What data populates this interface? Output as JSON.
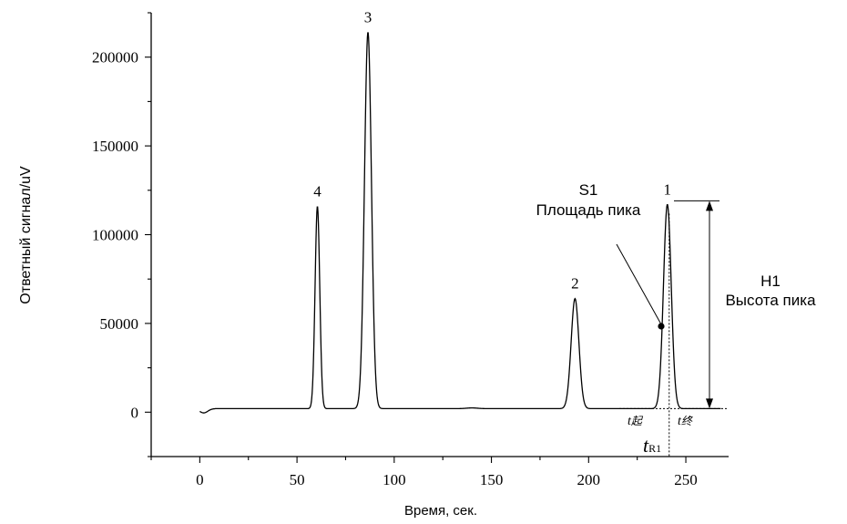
{
  "chart_data": {
    "type": "line",
    "xlabel": "Время, сек.",
    "ylabel": "Ответный сигнал/uV",
    "xlim": [
      -25,
      272
    ],
    "ylim": [
      -25000,
      225000
    ],
    "x_ticks": [
      0,
      50,
      100,
      150,
      200,
      250
    ],
    "y_ticks": [
      0,
      50000,
      100000,
      150000,
      200000
    ],
    "grid": false,
    "baseline": 2000,
    "peaks": [
      {
        "label": "4",
        "x": 60.5,
        "y": 116000
      },
      {
        "label": "3",
        "x": 86.5,
        "y": 214000
      },
      {
        "label": "2",
        "x": 193,
        "y": 64000
      },
      {
        "label": "1",
        "x": 240.5,
        "y": 117000
      }
    ],
    "annotations": {
      "area_title": "S1",
      "area_label": "Площадь пика",
      "height_title": "H1",
      "height_label": "Высота пика",
      "t_start_italic": "t",
      "t_start_sub": "起",
      "t_end_italic": "t",
      "t_end_sub": "终",
      "t_r_main": "t",
      "t_r_sub": "R1"
    }
  }
}
